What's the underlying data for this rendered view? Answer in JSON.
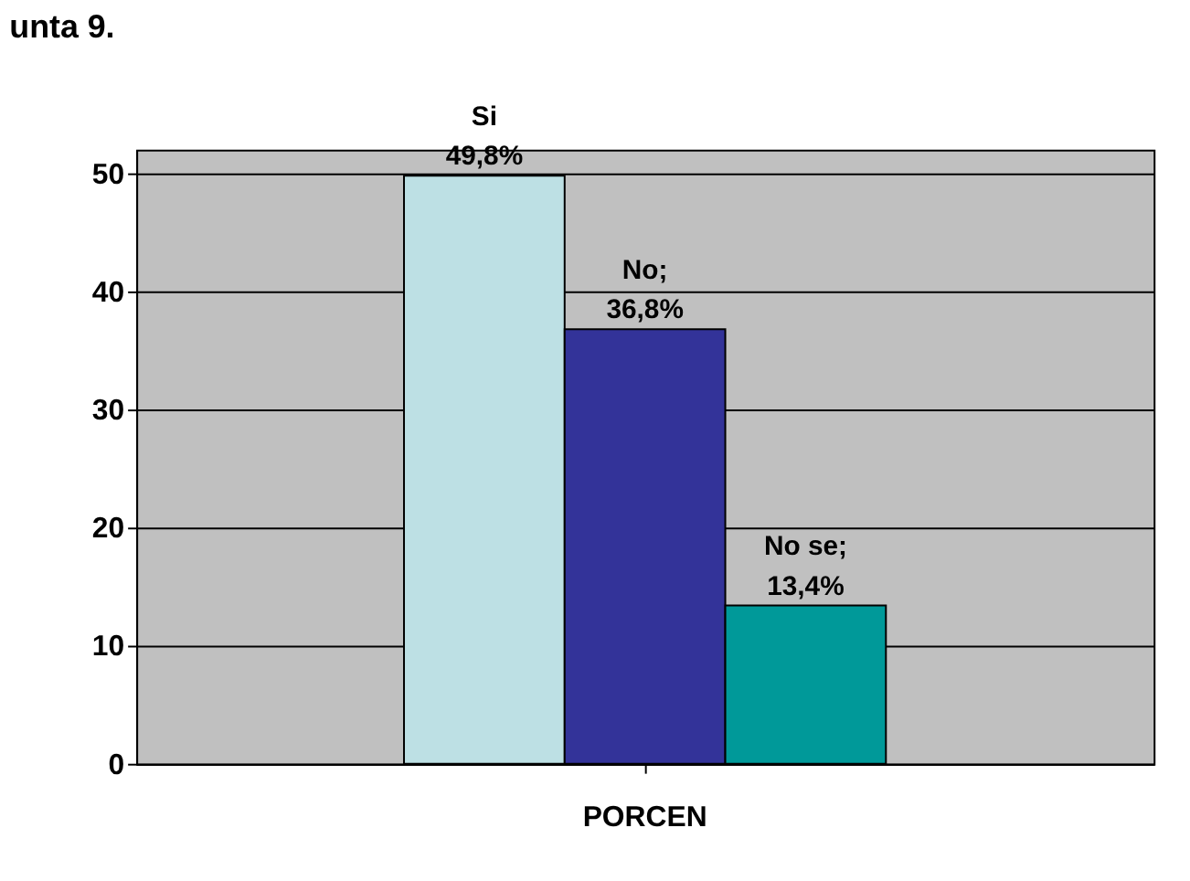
{
  "chart_data": {
    "type": "bar",
    "title": "unta 9.",
    "categories": [
      "PORCEN"
    ],
    "series": [
      {
        "color": "#bde0e4",
        "values": [
          49.8
        ],
        "value_labels": [
          "Si\n49,8%"
        ]
      },
      {
        "color": "#333399",
        "values": [
          36.8
        ],
        "value_labels": [
          "No;\n36,8%"
        ]
      },
      {
        "color": "#009999",
        "values": [
          13.4
        ],
        "value_labels": [
          "No se;\n13,4%"
        ]
      }
    ],
    "ylim": [
      0,
      52
    ],
    "yticks": [
      0,
      10,
      20,
      30,
      40,
      50
    ],
    "grid": "y"
  }
}
